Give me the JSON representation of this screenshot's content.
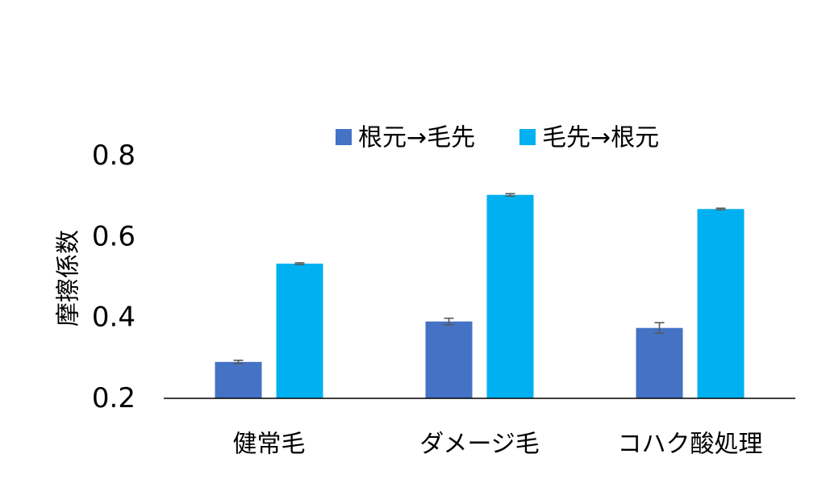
{
  "chart_data": {
    "type": "bar",
    "title": "",
    "xlabel": "",
    "ylabel": "摩擦係数",
    "ylim": [
      0.2,
      0.8
    ],
    "yticks": [
      "0.2",
      "0.4",
      "0.6",
      "0.8"
    ],
    "categories": [
      "健常毛",
      "ダメージ毛",
      "コハク酸処理"
    ],
    "series": [
      {
        "name": "根元→毛先",
        "color": "#4472C4",
        "values": [
          0.29,
          0.39,
          0.374
        ],
        "errors": [
          0.004,
          0.008,
          0.013
        ]
      },
      {
        "name": "毛先→根元",
        "color": "#00B0F0",
        "values": [
          0.533,
          0.703,
          0.668
        ],
        "errors": [
          0.002,
          0.003,
          0.002
        ]
      }
    ],
    "legend": "top",
    "grid": false,
    "error_bar_color": "#595959"
  }
}
